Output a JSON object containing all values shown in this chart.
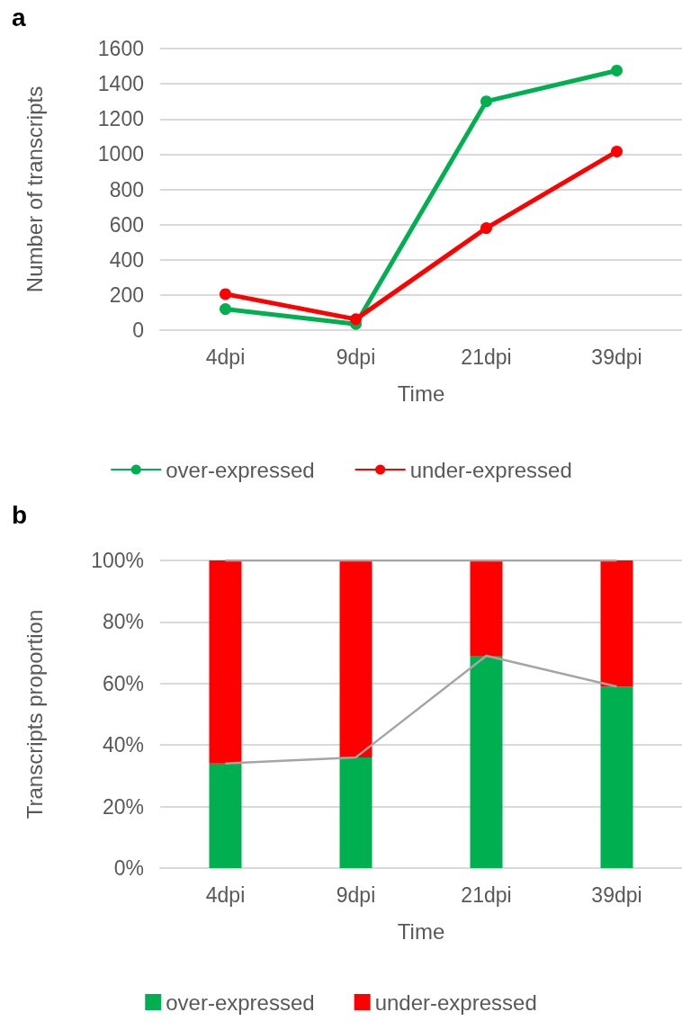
{
  "chart_data": [
    {
      "type": "line",
      "title": "a",
      "xlabel": "Time",
      "ylabel": "Number of transcripts",
      "categories": [
        "4dpi",
        "9dpi",
        "21dpi",
        "39dpi"
      ],
      "series": [
        {
          "name": "over-expressed",
          "color": "#00b050",
          "values": [
            120,
            35,
            1300,
            1475
          ]
        },
        {
          "name": "under-expressed",
          "color": "#ff0000",
          "values": [
            205,
            62,
            580,
            1015
          ]
        }
      ],
      "ylim": [
        0,
        1600
      ],
      "yticks": [
        0,
        200,
        400,
        600,
        800,
        1000,
        1200,
        1400,
        1600
      ],
      "grid": "y",
      "legend": "bottom",
      "marker": "circle"
    },
    {
      "type": "bar",
      "title": "b",
      "xlabel": "Time",
      "ylabel": "Transcripts proportion",
      "categories": [
        "4dpi",
        "9dpi",
        "21dpi",
        "39dpi"
      ],
      "stacked": true,
      "series": [
        {
          "name": "over-expressed",
          "color": "#00b050",
          "values": [
            34,
            36,
            69,
            59
          ]
        },
        {
          "name": "under-expressed",
          "color": "#ff0000",
          "values": [
            66,
            64,
            31,
            41
          ]
        },
        {
          "type": "line",
          "color": "#a5a5a5",
          "values": [
            34,
            36,
            69,
            59
          ]
        },
        {
          "type": "line",
          "color": "#a5a5a5",
          "values": [
            100,
            100,
            100,
            100
          ]
        }
      ],
      "ylim": [
        0,
        100
      ],
      "yticks": [
        {
          "value": 0,
          "label": "0%"
        },
        {
          "value": 20,
          "label": "20%"
        },
        {
          "value": 40,
          "label": "40%"
        },
        {
          "value": 60,
          "label": "60%"
        },
        {
          "value": 80,
          "label": "80%"
        },
        {
          "value": 100,
          "label": "100%"
        }
      ],
      "grid": "y",
      "legend": "bottom"
    }
  ]
}
